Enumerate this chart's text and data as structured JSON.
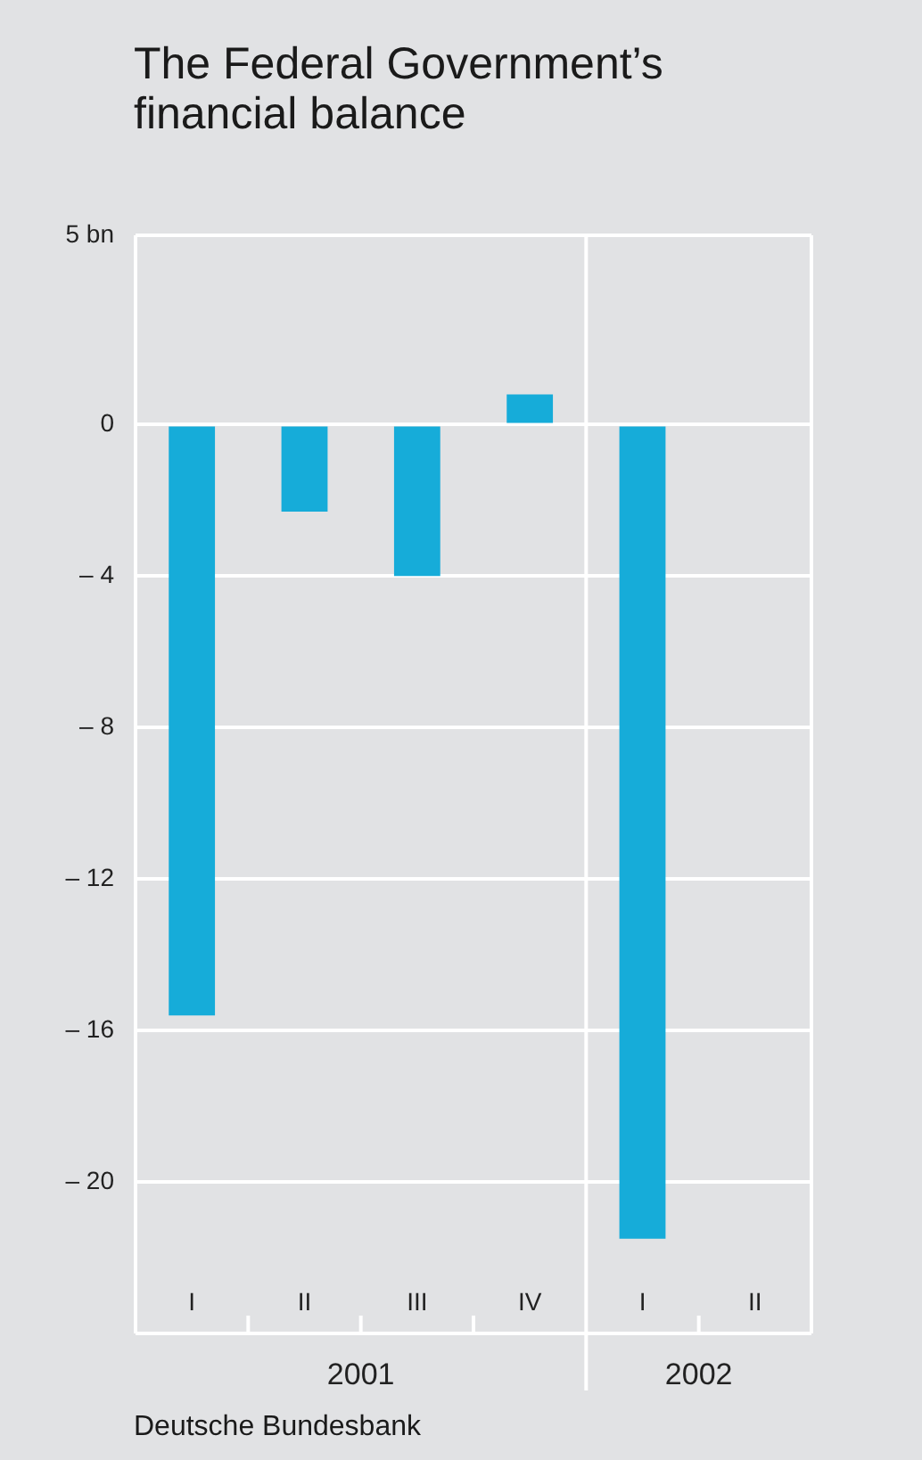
{
  "chart_data": {
    "type": "bar",
    "title": "The Federal Government’s financial balance",
    "categories": [
      "I",
      "II",
      "III",
      "IV",
      "I",
      "II"
    ],
    "values": [
      -15.6,
      -2.3,
      -4.0,
      0.8,
      -21.5,
      null
    ],
    "color": "#16acd9",
    "ylim": [
      -24,
      5
    ],
    "yticks": [
      {
        "value": 5,
        "label": "5 bn"
      },
      0,
      {
        "value": -4,
        "label": "– 4"
      },
      {
        "value": -8,
        "label": "– 8"
      },
      {
        "value": -12,
        "label": "– 12"
      },
      {
        "value": -16,
        "label": "– 16"
      },
      {
        "value": -20,
        "label": "– 20"
      }
    ],
    "grid": "y",
    "annotations": [
      "2001",
      "2002",
      "Deutsche Bundesbank"
    ]
  }
}
